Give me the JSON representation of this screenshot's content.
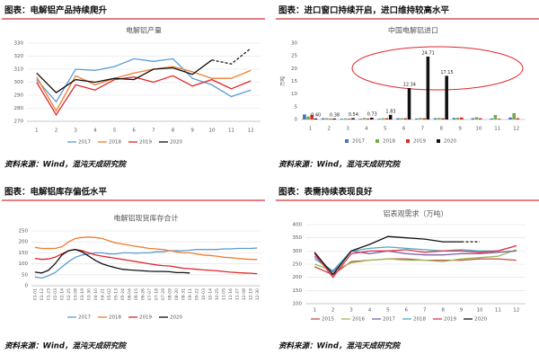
{
  "chart_data": [
    {
      "type": "line",
      "heading": "图表：电解铝产品持续爬升",
      "source": "资料来源：Wind，混沌天成研究院",
      "title": "电解铝产量",
      "categories": [
        "1",
        "2",
        "3",
        "4",
        "5",
        "6",
        "7",
        "8",
        "9",
        "10",
        "11",
        "12"
      ],
      "ylim": [
        270,
        330
      ],
      "yticks": [
        270,
        280,
        290,
        300,
        310,
        320,
        330
      ],
      "grid": true,
      "legend": "bottom",
      "series": [
        {
          "name": "2017",
          "color": "#5b9bd5",
          "values": [
            302,
            285,
            310,
            309,
            312,
            318,
            316,
            318,
            303,
            298,
            289,
            294
          ]
        },
        {
          "name": "2018",
          "color": "#ed7d31",
          "values": [
            304,
            278,
            305,
            298,
            303,
            307,
            310,
            312,
            308,
            303,
            303,
            309
          ]
        },
        {
          "name": "2019",
          "color": "#e0262b",
          "values": [
            300,
            275,
            298,
            294,
            302,
            304,
            300,
            305,
            297,
            302,
            295,
            301
          ]
        },
        {
          "name": "2020",
          "color": "#111111",
          "dash_from": 9,
          "values": [
            307,
            292,
            302,
            300,
            303,
            302,
            310,
            311,
            306,
            317,
            314,
            326
          ]
        }
      ]
    },
    {
      "type": "bar",
      "heading": "图表：进口窗口持续开启，进口维持较高水平",
      "source": "资料来源：Wind，混沌天成研究院",
      "title": "中国电解铝进口",
      "y_label": "万吨",
      "categories": [
        "1",
        "2",
        "3",
        "4",
        "5",
        "6",
        "7",
        "8",
        "9",
        "10",
        "11",
        "12"
      ],
      "ylim": [
        0,
        30
      ],
      "yticks": [
        0,
        5,
        10,
        15,
        20,
        25,
        30
      ],
      "grid": false,
      "legend": "bottom",
      "series": [
        {
          "name": "2017",
          "color": "#4472c4",
          "values": [
            2,
            0.5,
            0.3,
            0.3,
            0.3,
            0.5,
            0.4,
            0.5,
            0.6,
            0.5,
            0.4,
            0.8
          ]
        },
        {
          "name": "2018",
          "color": "#70ad47",
          "values": [
            1.2,
            0.5,
            0.4,
            0.6,
            0.5,
            0.5,
            0.6,
            0.6,
            0.7,
            0.9,
            1.8,
            2.5
          ]
        },
        {
          "name": "2019",
          "color": "#e0262b",
          "values": [
            1.8,
            0.3,
            0.3,
            0.4,
            0.5,
            0.5,
            0.5,
            0.5,
            0.8,
            0.5,
            0.3,
            0.5
          ]
        },
        {
          "name": "2020",
          "color": "#111111",
          "values": [
            0.4,
            0.38,
            0.54,
            0.73,
            1.83,
            12.34,
            24.71,
            17.15,
            null,
            null,
            null,
            null
          ],
          "value_labels": [
            "0.40",
            "0.38",
            "0.54",
            "0.73",
            "1.83",
            "12.34",
            "24.71",
            "17.15",
            null,
            null,
            null,
            null
          ]
        }
      ]
    },
    {
      "type": "line",
      "heading": "图表：电解铝库存偏低水平",
      "source": "资料来源：Wind，混沌天成研究院",
      "title": "电解铝现货库存合计",
      "categories": [
        "01-01",
        "01-12",
        "01-23",
        "02-03",
        "02-14",
        "02-25",
        "03-08",
        "03-19",
        "03-30",
        "04-10",
        "04-21",
        "05-02",
        "05-13",
        "05-24",
        "06-04",
        "06-15",
        "06-26",
        "07-07",
        "07-18",
        "07-29",
        "08-09",
        "08-20",
        "08-31",
        "09-11",
        "09-22",
        "10-03",
        "10-14",
        "10-25",
        "11-05",
        "11-16",
        "11-27",
        "12-08",
        "12-19",
        "12-30"
      ],
      "rotate_x": true,
      "ylim": [
        0,
        250
      ],
      "yticks": [
        0,
        50,
        100,
        150,
        200,
        250
      ],
      "grid": true,
      "legend": "bottom",
      "series": [
        {
          "name": "2017",
          "color": "#5b9bd5",
          "values": [
            40,
            35,
            45,
            60,
            85,
            110,
            130,
            140,
            145,
            150,
            150,
            145,
            145,
            150,
            150,
            148,
            150,
            150,
            155,
            155,
            160,
            160,
            160,
            162,
            165,
            165,
            165,
            165,
            168,
            168,
            170,
            170,
            170,
            172
          ]
        },
        {
          "name": "2018",
          "color": "#ed7d31",
          "values": [
            175,
            170,
            170,
            170,
            178,
            200,
            215,
            220,
            222,
            220,
            215,
            205,
            195,
            190,
            185,
            180,
            175,
            170,
            168,
            165,
            160,
            155,
            150,
            150,
            145,
            140,
            138,
            135,
            130,
            128,
            125,
            122,
            120,
            120
          ]
        },
        {
          "name": "2019",
          "color": "#e0262b",
          "values": [
            125,
            120,
            122,
            130,
            145,
            160,
            165,
            160,
            150,
            140,
            135,
            130,
            125,
            120,
            115,
            110,
            105,
            100,
            95,
            92,
            90,
            85,
            80,
            78,
            75,
            72,
            70,
            68,
            65,
            62,
            60,
            58,
            57,
            55
          ]
        },
        {
          "name": "2020",
          "color": "#111111",
          "values": [
            62,
            58,
            70,
            100,
            140,
            160,
            165,
            155,
            135,
            115,
            100,
            90,
            82,
            75,
            72,
            70,
            68,
            66,
            65,
            65,
            64,
            60,
            60,
            58,
            null,
            null,
            null,
            null,
            null,
            null,
            null,
            null,
            null,
            null
          ]
        }
      ]
    },
    {
      "type": "line",
      "heading": "图表：表需持续表现良好",
      "source": "资料来源：Wind，混沌天成研究院",
      "title": "铝表观需求（万吨）",
      "categories": [
        "1",
        "2",
        "3",
        "4",
        "5",
        "6",
        "7",
        "8",
        "9",
        "10",
        "11",
        "12"
      ],
      "ylim": [
        100,
        400
      ],
      "yticks": [
        100,
        150,
        200,
        250,
        300,
        350,
        400
      ],
      "grid": true,
      "legend": "bottom",
      "series": [
        {
          "name": "2015",
          "color": "#c0504d",
          "values": [
            240,
            210,
            260,
            265,
            270,
            270,
            265,
            265,
            265,
            270,
            270,
            265
          ]
        },
        {
          "name": "2016",
          "color": "#9bbb59",
          "values": [
            250,
            225,
            255,
            265,
            270,
            265,
            265,
            260,
            270,
            275,
            280,
            305
          ]
        },
        {
          "name": "2017",
          "color": "#8064a2",
          "values": [
            280,
            220,
            300,
            290,
            300,
            290,
            285,
            285,
            290,
            290,
            295,
            300
          ]
        },
        {
          "name": "2018",
          "color": "#4bacc6",
          "values": [
            270,
            225,
            300,
            310,
            315,
            310,
            305,
            300,
            305,
            300,
            300,
            320
          ]
        },
        {
          "name": "2019",
          "color": "#e8354a",
          "values": [
            290,
            200,
            290,
            300,
            300,
            305,
            295,
            300,
            300,
            295,
            300,
            320
          ]
        },
        {
          "name": "2020",
          "color": "#111111",
          "dash_from": 8,
          "values": [
            295,
            210,
            300,
            325,
            355,
            350,
            345,
            335,
            335,
            335,
            null,
            null
          ]
        }
      ]
    }
  ]
}
